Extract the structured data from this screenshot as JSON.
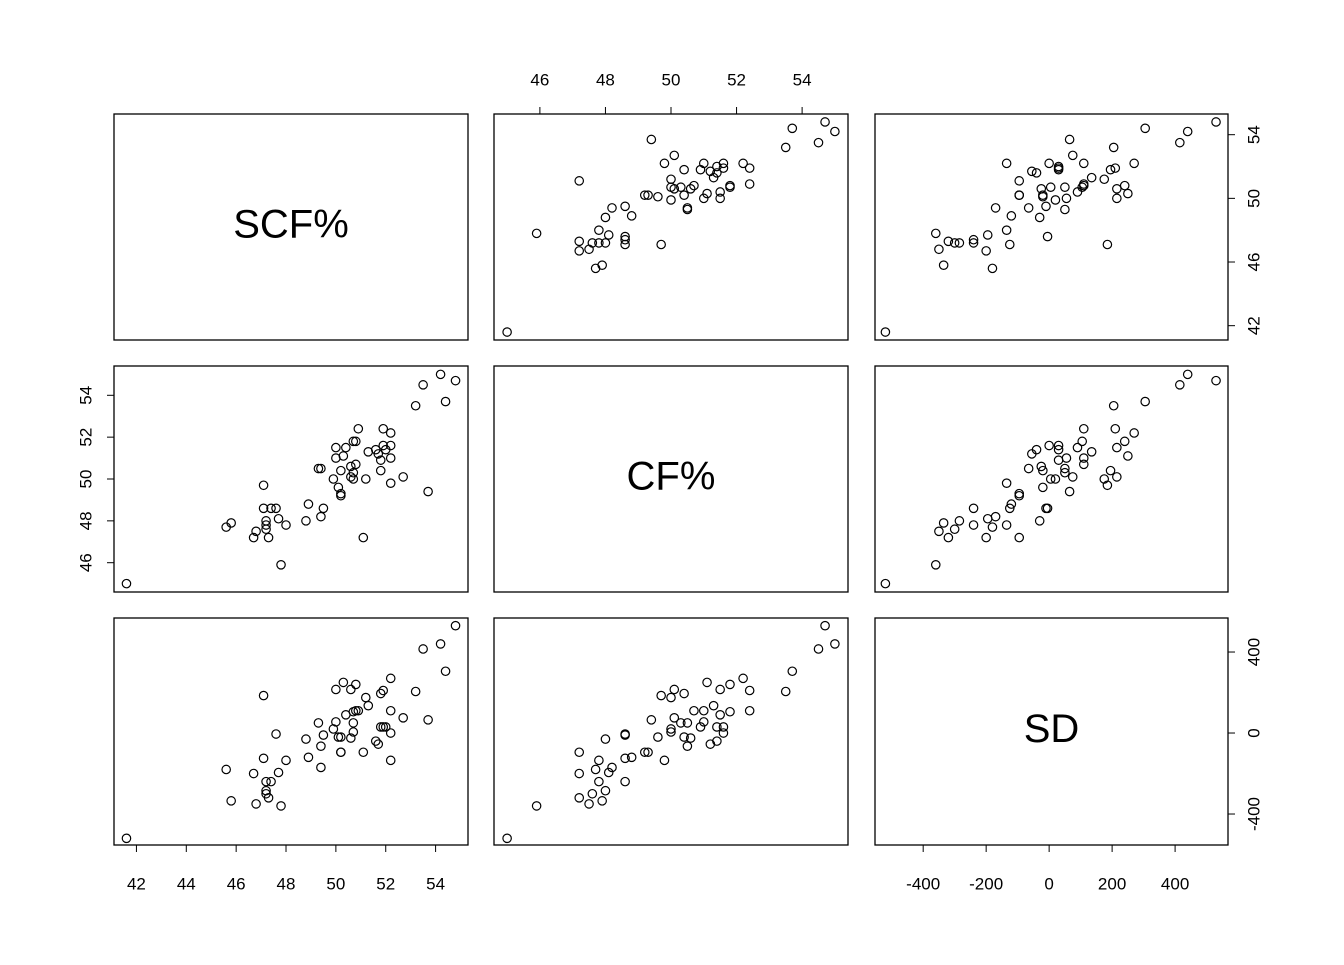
{
  "chart_data": {
    "type": "scatter-matrix",
    "variables": [
      {
        "name": "SCF%",
        "lim": [
          41.1,
          55.3
        ],
        "xticks": [
          42,
          44,
          46,
          48,
          50,
          52,
          54
        ],
        "yticks": [
          42,
          46,
          50,
          54
        ],
        "values": [
          41.6,
          45.6,
          45.8,
          46.7,
          46.8,
          47.1,
          47.1,
          47.2,
          47.2,
          47.3,
          47.2,
          47.4,
          47.6,
          47.7,
          47.8,
          48.0,
          48.8,
          48.9,
          49.3,
          49.4,
          49.4,
          49.5,
          49.9,
          50.0,
          50.0,
          50.1,
          50.2,
          50.2,
          50.2,
          50.3,
          50.4,
          50.6,
          50.6,
          50.7,
          50.7,
          50.7,
          50.8,
          50.8,
          50.9,
          51.1,
          51.2,
          51.3,
          51.6,
          51.7,
          51.8,
          51.8,
          51.9,
          51.9,
          52.0,
          52.2,
          52.2,
          52.2,
          52.2,
          52.7,
          53.2,
          53.5,
          53.7,
          54.2,
          54.4,
          54.8
        ]
      },
      {
        "name": "CF%",
        "lim": [
          44.6,
          55.4
        ],
        "xticks": [
          46,
          48,
          50,
          52,
          54
        ],
        "yticks": [
          46,
          48,
          50,
          52,
          54
        ],
        "values": [
          45.0,
          47.7,
          47.9,
          47.2,
          47.5,
          49.7,
          48.6,
          47.6,
          48.0,
          47.2,
          47.8,
          48.6,
          48.6,
          48.1,
          45.9,
          47.8,
          48.0,
          48.8,
          50.5,
          50.5,
          48.2,
          48.6,
          50.0,
          51.5,
          51.0,
          49.6,
          50.4,
          49.3,
          49.2,
          51.1,
          51.5,
          50.6,
          50.1,
          50.3,
          50.0,
          51.8,
          51.8,
          50.7,
          52.4,
          47.2,
          50.0,
          51.3,
          51.4,
          51.2,
          50.4,
          50.9,
          51.6,
          52.4,
          51.4,
          51.6,
          49.8,
          52.2,
          51.0,
          50.1,
          53.5,
          54.5,
          49.4,
          55.0,
          53.7,
          54.7
        ]
      },
      {
        "name": "SD",
        "lim": [
          -553,
          568
        ],
        "xticks": [
          -400,
          -200,
          0,
          200,
          400
        ],
        "yticks": [
          -400,
          0,
          400
        ],
        "values": [
          -520,
          -180,
          -335,
          -200,
          -350,
          185,
          -125,
          -300,
          -285,
          -320,
          -240,
          -240,
          -5,
          -195,
          -360,
          -135,
          -30,
          -120,
          50,
          -65,
          -170,
          -10,
          20,
          215,
          55,
          -20,
          -20,
          -95,
          -95,
          250,
          90,
          -25,
          215,
          50,
          5,
          105,
          240,
          110,
          110,
          -95,
          175,
          135,
          -40,
          -55,
          195,
          30,
          30,
          210,
          30,
          0,
          -135,
          270,
          110,
          75,
          205,
          415,
          65,
          440,
          305,
          530
        ]
      }
    ]
  }
}
